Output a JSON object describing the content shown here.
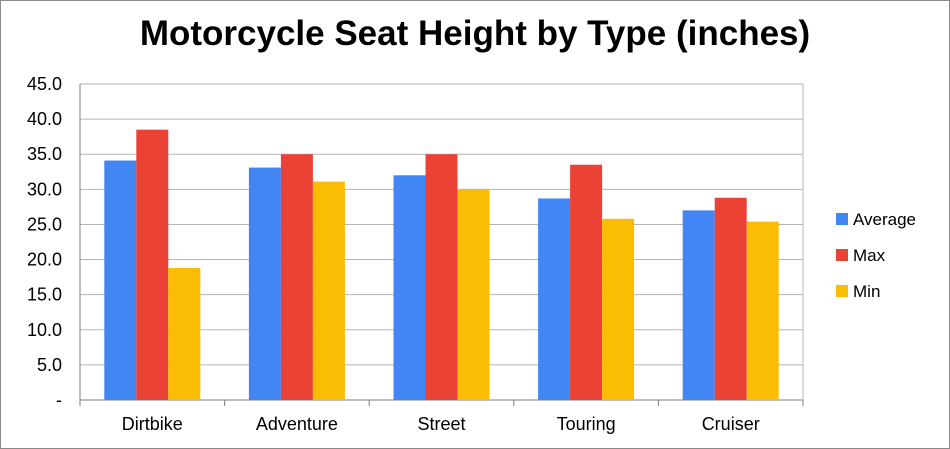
{
  "chart_data": {
    "type": "bar",
    "title": "Motorcycle Seat Height by Type (inches)",
    "xlabel": "",
    "ylabel": "",
    "categories": [
      "Dirtbike",
      "Adventure",
      "Street",
      "Touring",
      "Cruiser"
    ],
    "series": [
      {
        "name": "Average",
        "color": "#4285f4",
        "values": [
          34.1,
          33.1,
          32.0,
          28.7,
          27.0
        ]
      },
      {
        "name": "Max",
        "color": "#ea4335",
        "values": [
          38.5,
          35.0,
          35.0,
          33.5,
          28.8
        ]
      },
      {
        "name": "Min",
        "color": "#fbbc04",
        "values": [
          18.8,
          31.1,
          30.0,
          25.8,
          25.4
        ]
      }
    ],
    "ylim": [
      0,
      45
    ],
    "y_ticks": [
      "-",
      "5.0",
      "10.0",
      "15.0",
      "20.0",
      "25.0",
      "30.0",
      "35.0",
      "40.0",
      "45.0"
    ],
    "grid": true,
    "legend_position": "right"
  }
}
